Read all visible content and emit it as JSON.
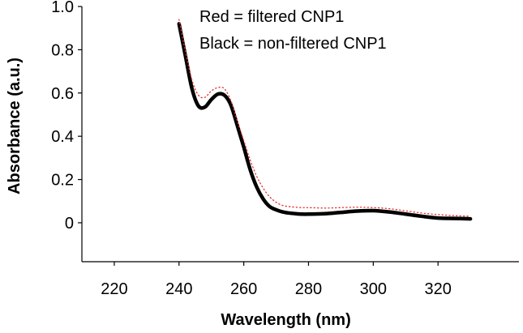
{
  "chart_data": {
    "type": "line",
    "title": "",
    "xlabel": "Wavelength (nm)",
    "ylabel": "Absorbance (a.u.)",
    "xlim": [
      210,
      345
    ],
    "ylim": [
      -0.18,
      1.0
    ],
    "x_ticks": [
      220,
      240,
      260,
      280,
      300,
      320
    ],
    "x_tick_labels": [
      "220",
      "240",
      "260",
      "280",
      "300",
      "320"
    ],
    "y_ticks": [
      0,
      0.2,
      0.4,
      0.6,
      0.8,
      1.0
    ],
    "y_tick_labels": [
      "0",
      "0.2",
      "0.4",
      "0.6",
      "0.8",
      "1.0"
    ],
    "grid": false,
    "annotations": [
      "Red = filtered CNP1",
      "Black = non-filtered CNP1"
    ],
    "series": [
      {
        "name": "filtered CNP1",
        "color": "#e53030",
        "style": "dotted",
        "x": [
          240,
          242,
          244,
          246,
          248,
          250,
          252,
          254,
          256,
          258,
          260,
          262,
          264,
          266,
          268,
          270,
          272,
          274,
          276,
          278,
          280,
          285,
          290,
          295,
          300,
          305,
          310,
          315,
          320,
          325,
          330
        ],
        "y": [
          0.94,
          0.79,
          0.66,
          0.59,
          0.58,
          0.61,
          0.625,
          0.62,
          0.565,
          0.47,
          0.38,
          0.29,
          0.215,
          0.16,
          0.12,
          0.095,
          0.08,
          0.075,
          0.072,
          0.07,
          0.07,
          0.068,
          0.07,
          0.072,
          0.07,
          0.065,
          0.055,
          0.045,
          0.038,
          0.033,
          0.03
        ]
      },
      {
        "name": "non-filtered CNP1",
        "color": "#000000",
        "style": "solid",
        "x": [
          240,
          242,
          244,
          246,
          248,
          250,
          252,
          254,
          256,
          258,
          260,
          262,
          264,
          266,
          268,
          270,
          272,
          274,
          276,
          278,
          280,
          285,
          290,
          295,
          300,
          305,
          310,
          315,
          320,
          325,
          330
        ],
        "y": [
          0.92,
          0.77,
          0.62,
          0.54,
          0.535,
          0.57,
          0.595,
          0.59,
          0.545,
          0.45,
          0.35,
          0.245,
          0.165,
          0.11,
          0.075,
          0.06,
          0.05,
          0.045,
          0.042,
          0.04,
          0.04,
          0.042,
          0.048,
          0.054,
          0.056,
          0.05,
          0.04,
          0.03,
          0.022,
          0.02,
          0.018
        ]
      }
    ]
  }
}
